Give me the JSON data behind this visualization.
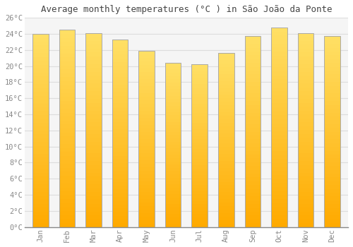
{
  "title": "Average monthly temperatures (°C ) in Sãto Joãto da Ponte",
  "title_display": "Average monthly temperatures (°C ) in São João da Ponte",
  "months": [
    "Jan",
    "Feb",
    "Mar",
    "Apr",
    "May",
    "Jun",
    "Jul",
    "Aug",
    "Sep",
    "Oct",
    "Nov",
    "Dec"
  ],
  "temperatures": [
    24.0,
    24.5,
    24.1,
    23.3,
    21.9,
    20.4,
    20.2,
    21.6,
    23.7,
    24.8,
    24.1,
    23.7
  ],
  "bar_color_bottom": "#FFAA00",
  "bar_color_top": "#FFE066",
  "bar_edge_color": "#AAAAAA",
  "background_color": "#FFFFFF",
  "plot_bg_color": "#F5F5F5",
  "grid_color": "#DDDDDD",
  "ylim": [
    0,
    26
  ],
  "ytick_step": 2,
  "title_fontsize": 9,
  "tick_fontsize": 7.5,
  "tick_color": "#888888",
  "font_family": "monospace",
  "bar_width": 0.6
}
